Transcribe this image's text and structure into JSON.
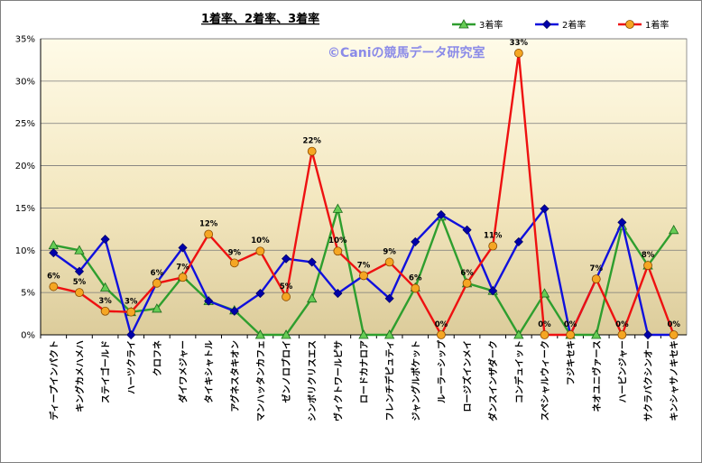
{
  "chart_data": {
    "type": "line",
    "title": "1着率、2着率、3着率",
    "watermark": "©Caniの競馬データ研究室",
    "xlabel": "",
    "ylabel": "",
    "ylim": [
      0,
      35
    ],
    "yticks": [
      "0%",
      "5%",
      "10%",
      "15%",
      "20%",
      "25%",
      "30%",
      "35%"
    ],
    "ytick_values": [
      0,
      5,
      10,
      15,
      20,
      25,
      30,
      35
    ],
    "grid": true,
    "legend_position": "top-right",
    "categories": [
      "ディープインパクト",
      "キングカメハメハ",
      "ステイゴールド",
      "ハーツクライ",
      "クロフネ",
      "ダイワメジャー",
      "タイキシャトル",
      "アグネスタキオン",
      "マンハッタンカフェ",
      "ゼンノロブロイ",
      "シンボリクリスエス",
      "ヴィクトワールピサ",
      "ロードカナロア",
      "フレンチデピュティ",
      "ジャングルポケット",
      "ルーラーシップ",
      "ロージズインメイ",
      "ダンスインザダーク",
      "コンデュイット",
      "スペシャルウィーク",
      "フジキセキ",
      "ネオユニヴァース",
      "ハービンジャー",
      "サクラバクシンオー",
      "キンシャサノキセキ"
    ],
    "series": [
      {
        "name": "3着率",
        "color": "#2e9e2e",
        "marker": "triangle",
        "marker_fill": "#66cc55",
        "values": [
          10.6,
          10.0,
          5.6,
          2.7,
          3.1,
          6.9,
          4.0,
          2.9,
          0.0,
          0.0,
          4.3,
          14.9,
          0.0,
          0.0,
          5.6,
          14.0,
          6.1,
          5.2,
          0.0,
          4.9,
          0.0,
          0.0,
          12.9,
          8.2,
          12.4
        ]
      },
      {
        "name": "2着率",
        "color": "#1010dd",
        "marker": "diamond",
        "marker_fill": "#0000aa",
        "values": [
          9.7,
          7.5,
          11.3,
          0.0,
          6.2,
          10.3,
          4.0,
          2.8,
          4.9,
          9.0,
          8.6,
          4.9,
          7.0,
          4.3,
          11.0,
          14.2,
          12.4,
          5.2,
          11.0,
          14.9,
          0.0,
          6.6,
          13.3,
          0.0,
          0.0
        ]
      },
      {
        "name": "1着率",
        "color": "#ee1111",
        "marker": "circle",
        "marker_fill": "#f5a623",
        "values": [
          5.7,
          5.0,
          2.8,
          2.7,
          6.1,
          6.8,
          11.9,
          8.5,
          9.9,
          4.5,
          21.7,
          9.9,
          7.0,
          8.6,
          5.5,
          0.0,
          6.1,
          10.5,
          33.3,
          0.0,
          0.0,
          6.6,
          0.0,
          8.2,
          0.0
        ],
        "data_labels": [
          "6%",
          "5%",
          "3%",
          "3%",
          "6%",
          "7%",
          "12%",
          "9%",
          "10%",
          "5%",
          "22%",
          "10%",
          "7%",
          "9%",
          "6%",
          "0%",
          "6%",
          "11%",
          "33%",
          "0%",
          "0%",
          "7%",
          "0%",
          "8%",
          "0%"
        ]
      }
    ]
  }
}
